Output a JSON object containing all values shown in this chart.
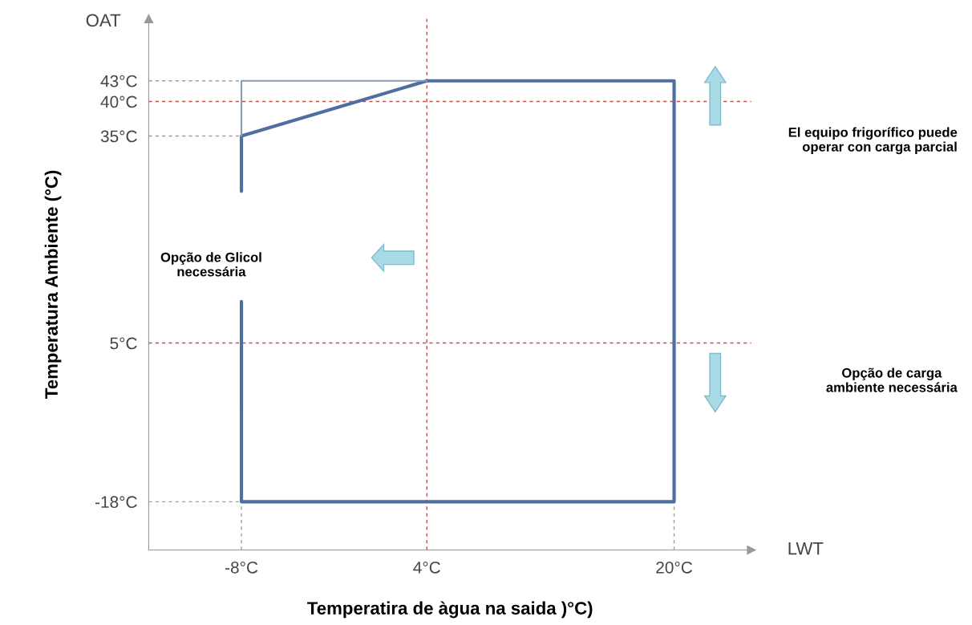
{
  "chart_data": {
    "type": "line",
    "xlabel": "Temperatira de àgua na saida )°C)",
    "ylabel": "Temperatura Ambiente (°C)",
    "xlim": [
      -14,
      25
    ],
    "ylim": [
      -25,
      52
    ],
    "xticks": [
      {
        "value": -8,
        "label": "-8°C"
      },
      {
        "value": 4,
        "label": "4°C"
      },
      {
        "value": 20,
        "label": "20°C"
      }
    ],
    "yticks": [
      {
        "value": -18,
        "label": "-18°C"
      },
      {
        "value": 5,
        "label": "5°C"
      },
      {
        "value": 35,
        "label": "35°C"
      },
      {
        "value": 40,
        "label": "40°C"
      },
      {
        "value": 43,
        "label": "43°C"
      }
    ],
    "series": [
      {
        "color": "#4f6fa0",
        "x": [
          -8,
          -8,
          20,
          20,
          4,
          -8,
          -8
        ],
        "values": [
          11,
          -18,
          -18,
          43,
          43,
          35,
          27
        ]
      },
      {
        "color": "#8a9bb5",
        "x": [
          -8,
          -8,
          4
        ],
        "values": [
          35,
          43,
          43
        ]
      }
    ],
    "ref_lines": [
      {
        "axis": "x",
        "value": 4,
        "color": "#c0504d",
        "line_style": "dashed"
      },
      {
        "axis": "y",
        "value": 40,
        "color": "#c0504d",
        "line_style": "dashed"
      },
      {
        "axis": "y",
        "value": 5,
        "color": "#c0504d",
        "line_style": "dashed"
      },
      {
        "axis": "x",
        "value": -8,
        "color": "#a0a0a0",
        "line_style": "dashed"
      },
      {
        "axis": "x",
        "value": 20,
        "color": "#a0a0a0",
        "line_style": "dashed"
      },
      {
        "axis": "y",
        "value": 43,
        "color": "#a0a0a0",
        "line_style": "dashed"
      },
      {
        "axis": "y",
        "value": 35,
        "color": "#a0a0a0",
        "line_style": "dashed"
      },
      {
        "axis": "y",
        "value": -18,
        "color": "#a0a0a0",
        "line_style": "dashed"
      }
    ],
    "annotations": [
      "OAT",
      "LWT",
      "El equipo frigorífico puede\noperar con carga parcial",
      "Opção de Glicol\nnecessária",
      "Opção de carga\nambiente necessária"
    ],
    "marker": "none",
    "line_style": "solid",
    "grid": false,
    "legend": false
  }
}
